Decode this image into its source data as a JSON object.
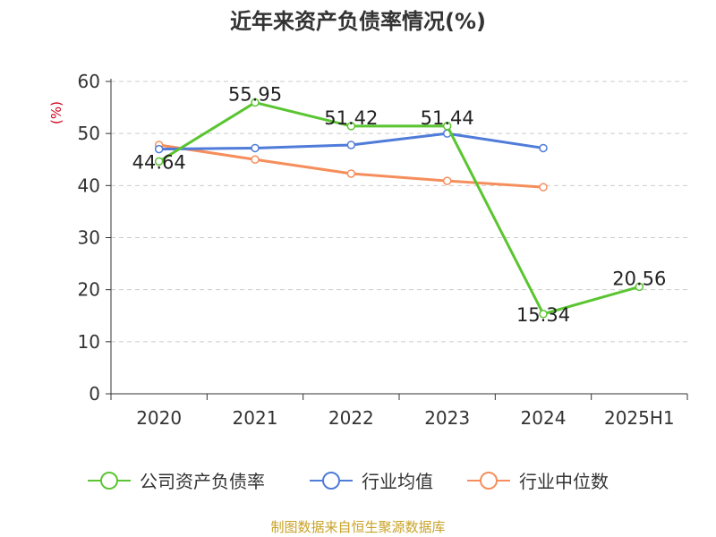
{
  "chart_data": {
    "type": "line",
    "title": "近年来资产负债率情况(%)",
    "ylabel": "(%)",
    "xlabel": "",
    "categories": [
      "2020",
      "2021",
      "2022",
      "2023",
      "2024",
      "2025H1"
    ],
    "ylim": [
      0,
      60
    ],
    "yticks": [
      0,
      10,
      20,
      30,
      40,
      50,
      60
    ],
    "grid": true,
    "legend_position": "bottom",
    "series": [
      {
        "name": "公司资产负债率",
        "color": "#5ac531",
        "values": [
          44.64,
          55.95,
          51.42,
          51.44,
          15.34,
          20.56
        ],
        "labels": [
          "44.64",
          "55.95",
          "51.42",
          "51.44",
          "15.34",
          "20.56"
        ]
      },
      {
        "name": "行业均值",
        "color": "#4f7bd9",
        "values": [
          47.0,
          47.2,
          47.8,
          50.0,
          47.2,
          null
        ]
      },
      {
        "name": "行业中位数",
        "color": "#f58e5c",
        "values": [
          47.8,
          45.0,
          42.3,
          40.9,
          39.7,
          null
        ]
      }
    ]
  },
  "source_note": "制图数据来自恒生聚源数据库"
}
